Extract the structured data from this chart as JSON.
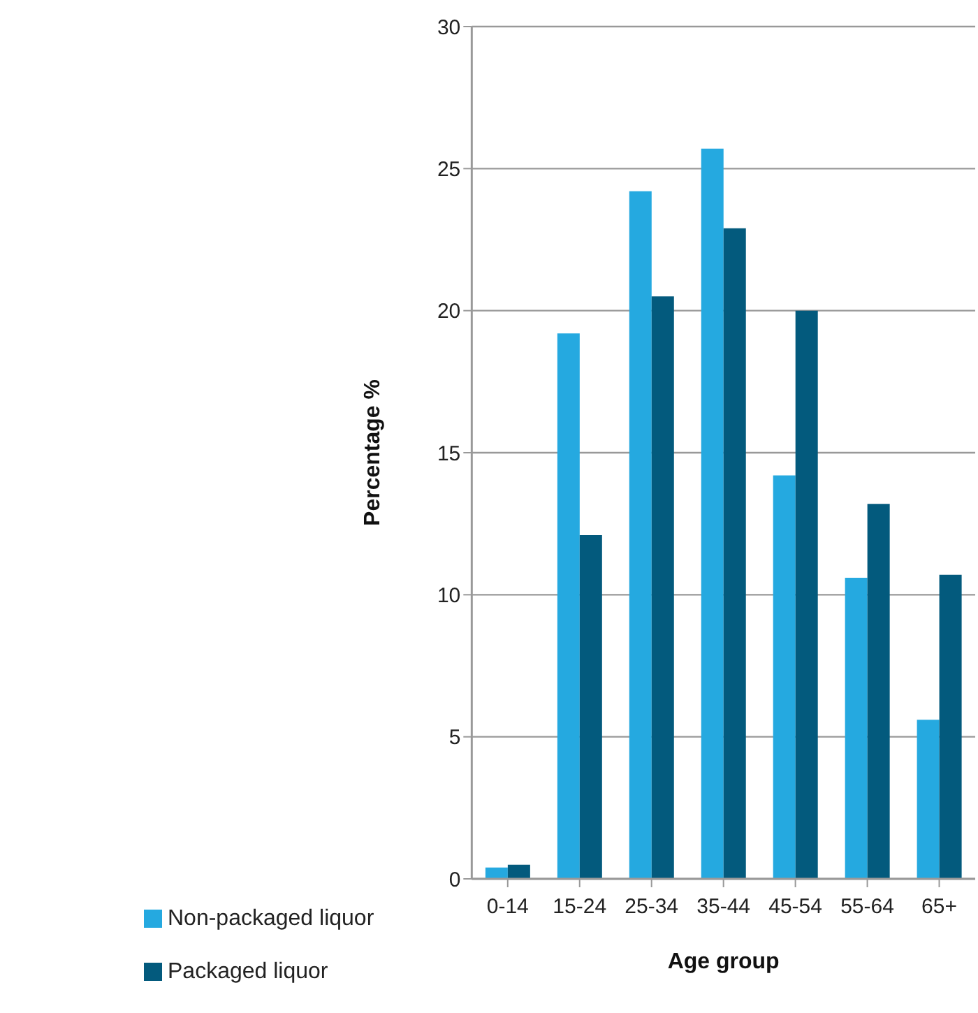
{
  "chart_data": {
    "type": "bar",
    "xlabel": "Age group",
    "ylabel": "Percentage %",
    "categories": [
      "0-14",
      "15-24",
      "25-34",
      "35-44",
      "45-54",
      "55-64",
      "65+"
    ],
    "series": [
      {
        "name": "Non-packaged liquor",
        "color": "#25a9e0",
        "values": [
          0.4,
          19.2,
          24.2,
          25.7,
          14.2,
          10.6,
          5.6
        ]
      },
      {
        "name": "Packaged liquor",
        "color": "#035a7d",
        "values": [
          0.5,
          12.1,
          20.5,
          22.9,
          20.0,
          13.2,
          10.7
        ]
      }
    ],
    "ylim": [
      0,
      30
    ],
    "yticks": [
      0,
      5,
      10,
      15,
      20,
      25,
      30
    ],
    "grid": "y",
    "legend": "bottom left"
  }
}
